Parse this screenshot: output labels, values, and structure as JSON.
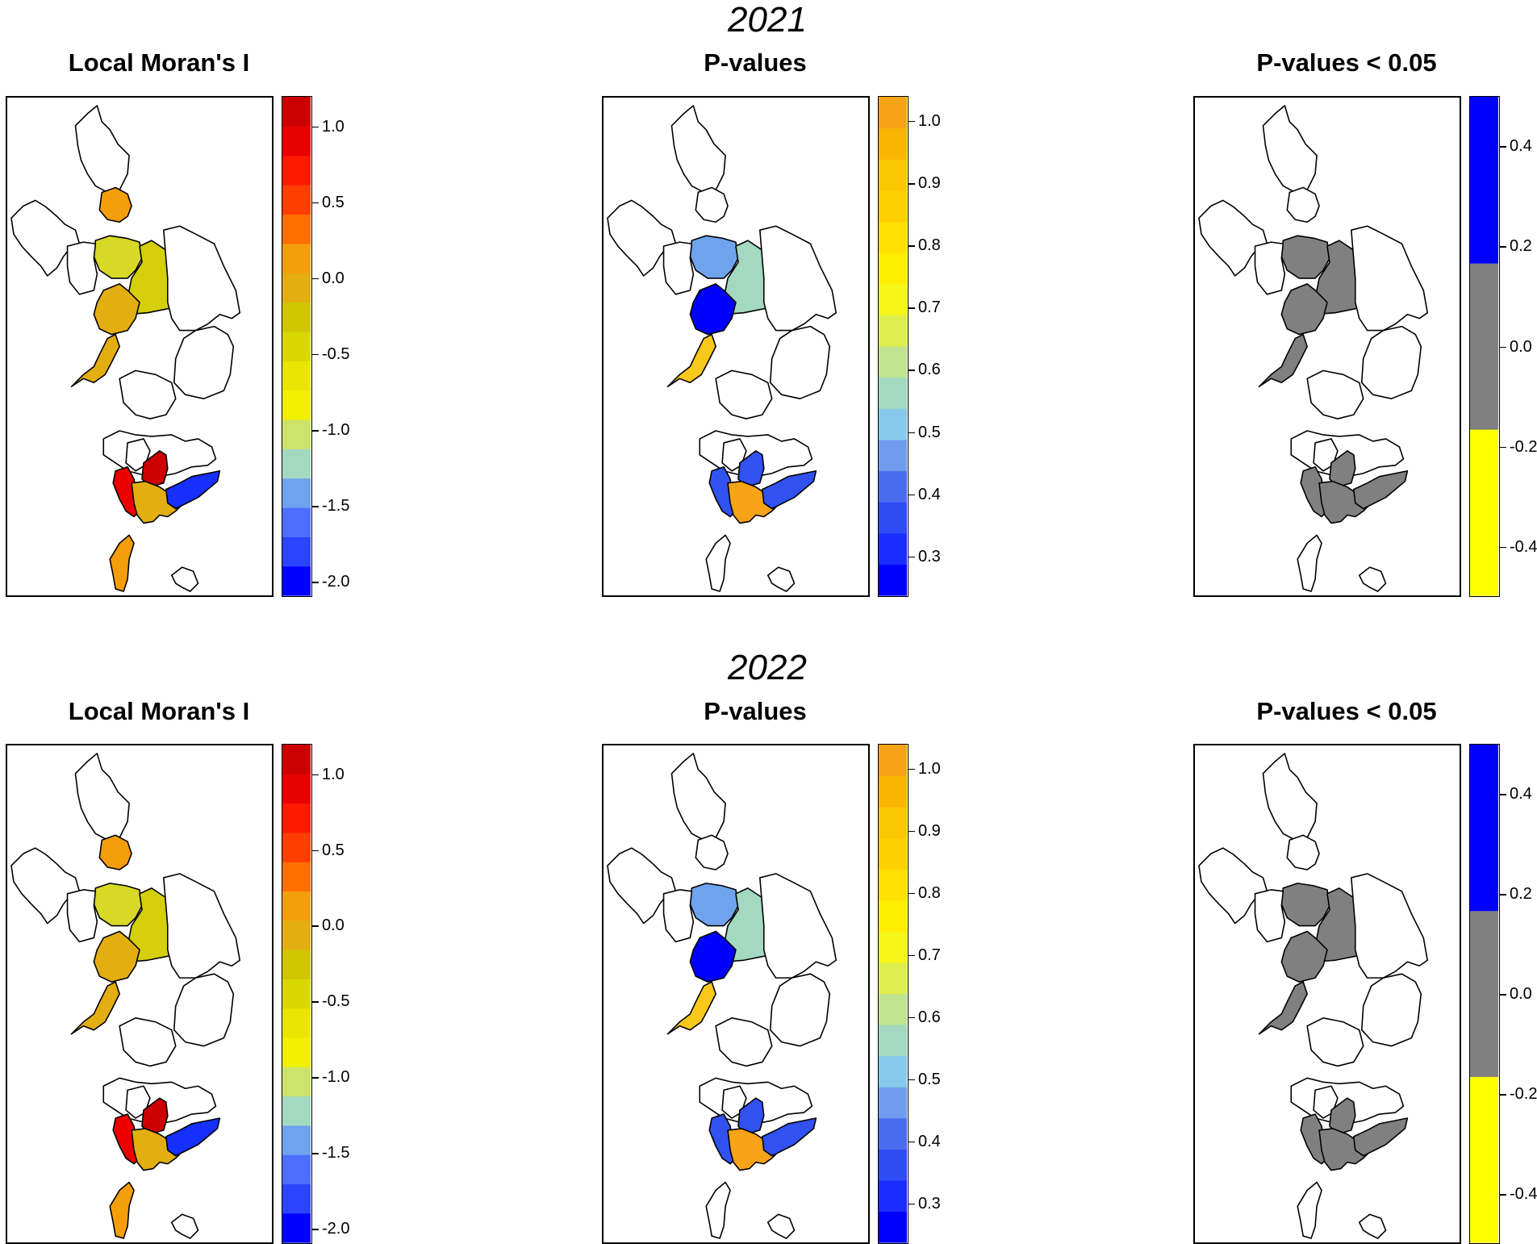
{
  "figure": {
    "years": [
      "2021",
      "2022"
    ],
    "panel_titles": [
      "Local Moran's I",
      "P-values",
      "P-values < 0.05"
    ]
  },
  "colors": {
    "white": "#ffffff",
    "moran_orange": "#F59E0B",
    "moran_olive": "#D4CF0A",
    "moran_gold": "#E3AE12",
    "moran_lime": "#D8D827",
    "moran_red": "#EE0000",
    "moran_darkred": "#CC0000",
    "moran_blue": "#1530FF",
    "p_lightblue": "#6FA3EE",
    "p_seafoam": "#A2D9C0",
    "p_blue": "#0000FF",
    "p_gold": "#F8C81B",
    "p_midblue": "#3152F0",
    "p_orange": "#F7A318",
    "sig_grey": "#808080",
    "sig_blue": "#0000FF",
    "sig_yellow": "#FFFF00"
  },
  "legends": {
    "moran": {
      "colors": [
        "#0000FF",
        "#2C44FF",
        "#4E6EFF",
        "#6FA3EE",
        "#A2D9C0",
        "#CDE36A",
        "#F0F000",
        "#E6E600",
        "#D8D800",
        "#CFC600",
        "#E3AE12",
        "#F59E0B",
        "#FF6E00",
        "#FF3E00",
        "#FF1A00",
        "#E80000",
        "#CC0000"
      ],
      "ticks": [
        "1.0",
        "0.5",
        "0.0",
        "-0.5",
        "-1.0",
        "-1.5",
        "-2.0"
      ],
      "tick_values": [
        1.0,
        0.5,
        0.0,
        -0.5,
        -1.0,
        -1.5,
        -2.0
      ],
      "range": [
        -2.1,
        1.2
      ]
    },
    "pvalue": {
      "colors": [
        "#0000FF",
        "#1A2CFF",
        "#2F4BF5",
        "#4C6CF0",
        "#6F9CEE",
        "#87C9EA",
        "#A2D9C0",
        "#BFE38E",
        "#DDEE4E",
        "#F5F51A",
        "#FFEE00",
        "#FFE000",
        "#FFD000",
        "#FCC600",
        "#F9B500",
        "#F7A318"
      ],
      "ticks": [
        "1.0",
        "0.9",
        "0.8",
        "0.7",
        "0.6",
        "0.5",
        "0.4",
        "0.3"
      ],
      "tick_values": [
        1.0,
        0.9,
        0.8,
        0.7,
        0.6,
        0.5,
        0.4,
        0.3
      ],
      "range": [
        0.235,
        1.04
      ]
    },
    "sig": {
      "colors": [
        "#FFFF00",
        "#808080",
        "#0000FF"
      ],
      "ticks": [
        "0.4",
        "0.2",
        "0.0",
        "-0.2",
        "-0.4"
      ],
      "tick_values": [
        0.4,
        0.2,
        0.0,
        -0.2,
        -0.4
      ],
      "range": [
        -0.5,
        0.5
      ]
    }
  },
  "maps": {
    "2021": {
      "moran": [
        "white",
        "white",
        "moran_orange",
        "moran_lime",
        "white",
        "moran_olive",
        "moran_gold",
        "moran_gold",
        "white",
        "white",
        "white",
        "white",
        "white",
        "moran_red",
        "moran_darkred",
        "moran_gold",
        "moran_blue",
        "moran_orange",
        "white"
      ],
      "pvalue": [
        "white",
        "white",
        "white",
        "p_lightblue",
        "white",
        "p_seafoam",
        "p_blue",
        "p_gold",
        "white",
        "white",
        "white",
        "white",
        "white",
        "p_midblue",
        "p_midblue",
        "p_orange",
        "p_midblue",
        "white",
        "white"
      ],
      "sig": [
        "white",
        "white",
        "white",
        "sig_grey",
        "white",
        "sig_grey",
        "sig_grey",
        "sig_grey",
        "white",
        "white",
        "white",
        "white",
        "white",
        "sig_grey",
        "sig_grey",
        "sig_grey",
        "sig_grey",
        "white",
        "white"
      ]
    },
    "2022": {
      "moran": [
        "white",
        "white",
        "moran_orange",
        "moran_lime",
        "white",
        "moran_olive",
        "moran_gold",
        "moran_gold",
        "white",
        "white",
        "white",
        "white",
        "white",
        "moran_red",
        "moran_darkred",
        "moran_gold",
        "moran_blue",
        "moran_orange",
        "white"
      ],
      "pvalue": [
        "white",
        "white",
        "white",
        "p_lightblue",
        "white",
        "p_seafoam",
        "p_blue",
        "p_gold",
        "white",
        "white",
        "white",
        "white",
        "white",
        "p_midblue",
        "p_midblue",
        "p_orange",
        "p_midblue",
        "white",
        "white"
      ],
      "sig": [
        "white",
        "white",
        "white",
        "sig_grey",
        "white",
        "sig_grey",
        "sig_grey",
        "sig_grey",
        "white",
        "white",
        "white",
        "white",
        "white",
        "sig_grey",
        "sig_grey",
        "sig_grey",
        "sig_grey",
        "white",
        "white"
      ]
    }
  }
}
